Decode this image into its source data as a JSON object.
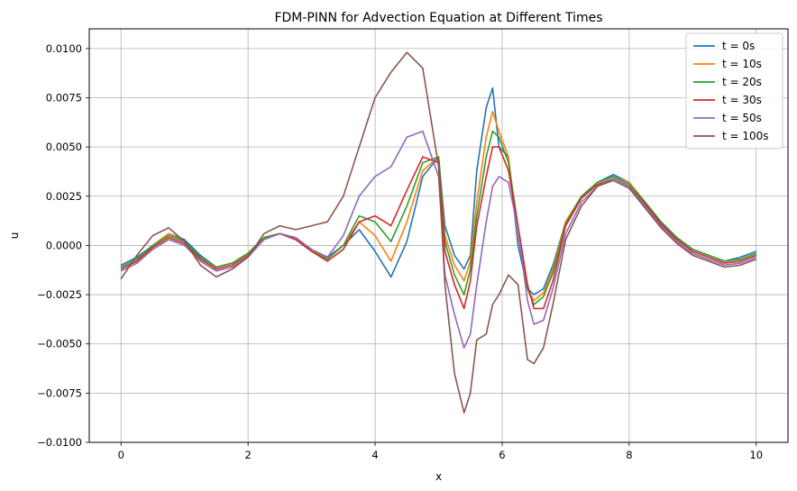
{
  "chart_data": {
    "type": "line",
    "title": "FDM-PINN for Advection Equation at Different Times",
    "xlabel": "x",
    "ylabel": "u",
    "xlim": [
      -0.5,
      10.5
    ],
    "ylim": [
      -0.01,
      0.011
    ],
    "xticks": [
      0,
      2,
      4,
      6,
      8,
      10
    ],
    "xtick_labels": [
      "0",
      "2",
      "4",
      "6",
      "8",
      "10"
    ],
    "yticks": [
      -0.01,
      -0.0075,
      -0.005,
      -0.0025,
      0.0,
      0.0025,
      0.005,
      0.0075,
      0.01
    ],
    "ytick_labels": [
      "−0.0100",
      "−0.0075",
      "−0.0050",
      "−0.0025",
      "0.0000",
      "0.0025",
      "0.0050",
      "0.0075",
      "0.0100"
    ],
    "grid": true,
    "legend_position": "top-right",
    "x": [
      0,
      0.25,
      0.5,
      0.75,
      1.0,
      1.25,
      1.5,
      1.75,
      2.0,
      2.25,
      2.5,
      2.75,
      3.0,
      3.25,
      3.5,
      3.75,
      4.0,
      4.25,
      4.5,
      4.75,
      5.0,
      5.1,
      5.25,
      5.4,
      5.5,
      5.6,
      5.75,
      5.85,
      5.95,
      6.1,
      6.25,
      6.4,
      6.5,
      6.65,
      6.8,
      7.0,
      7.25,
      7.5,
      7.75,
      8.0,
      8.25,
      8.5,
      8.75,
      9.0,
      9.25,
      9.5,
      9.75,
      10.0
    ],
    "series": [
      {
        "name": "t = 0s",
        "color": "#1f77b4",
        "values": [
          -0.001,
          -0.0006,
          0.0,
          0.0006,
          0.0003,
          -0.0005,
          -0.0011,
          -0.0009,
          -0.0004,
          0.0004,
          0.0006,
          0.0003,
          -0.0002,
          -0.0006,
          0.0,
          0.0008,
          -0.0003,
          -0.0016,
          0.0002,
          0.0035,
          0.0045,
          0.001,
          -0.0005,
          -0.0012,
          -0.0005,
          0.0038,
          0.007,
          0.008,
          0.005,
          0.0045,
          0.0,
          -0.0022,
          -0.0025,
          -0.0022,
          -0.001,
          0.0012,
          0.0025,
          0.0032,
          0.0036,
          0.0032,
          0.0022,
          0.0012,
          0.0004,
          -0.0002,
          -0.0005,
          -0.0008,
          -0.0006,
          -0.0003
        ]
      },
      {
        "name": "t = 10s",
        "color": "#ff7f0e",
        "values": [
          -0.0011,
          -0.0007,
          0.0,
          0.0006,
          0.0002,
          -0.0006,
          -0.0011,
          -0.0009,
          -0.0004,
          0.0004,
          0.0006,
          0.0003,
          -0.0002,
          -0.0007,
          0.0,
          0.0012,
          0.0005,
          -0.0008,
          0.0012,
          0.0038,
          0.0045,
          0.0005,
          -0.001,
          -0.0018,
          -0.0008,
          0.0022,
          0.0055,
          0.0068,
          0.0058,
          0.0045,
          0.0005,
          -0.0022,
          -0.0028,
          -0.0024,
          -0.0012,
          0.0012,
          0.0025,
          0.0032,
          0.0035,
          0.0032,
          0.0022,
          0.0012,
          0.0004,
          -0.0002,
          -0.0005,
          -0.0008,
          -0.0007,
          -0.0004
        ]
      },
      {
        "name": "t = 20s",
        "color": "#2ca02c",
        "values": [
          -0.0011,
          -0.0007,
          0.0,
          0.0005,
          0.0002,
          -0.0006,
          -0.0011,
          -0.0009,
          -0.0004,
          0.0004,
          0.0006,
          0.0003,
          -0.0003,
          -0.0007,
          0.0,
          0.0015,
          0.0012,
          0.0002,
          0.002,
          0.0042,
          0.0045,
          0.0002,
          -0.0015,
          -0.0025,
          -0.0012,
          0.0015,
          0.0045,
          0.0058,
          0.0055,
          0.0042,
          0.001,
          -0.0022,
          -0.003,
          -0.0026,
          -0.0014,
          0.0011,
          0.0025,
          0.0032,
          0.0035,
          0.0031,
          0.0022,
          0.0012,
          0.0004,
          -0.0002,
          -0.0005,
          -0.0008,
          -0.0007,
          -0.0004
        ]
      },
      {
        "name": "t = 30s",
        "color": "#d62728",
        "values": [
          -0.0012,
          -0.0008,
          -0.0001,
          0.0004,
          0.0001,
          -0.0007,
          -0.0012,
          -0.001,
          -0.0005,
          0.0003,
          0.0006,
          0.0003,
          -0.0003,
          -0.0008,
          -0.0002,
          0.0012,
          0.0015,
          0.001,
          0.0028,
          0.0045,
          0.0042,
          -0.0003,
          -0.002,
          -0.0032,
          -0.0018,
          0.001,
          0.0035,
          0.005,
          0.005,
          0.0038,
          0.001,
          -0.002,
          -0.0032,
          -0.0032,
          -0.0018,
          0.001,
          0.0024,
          0.0031,
          0.0034,
          0.003,
          0.0021,
          0.0011,
          0.0003,
          -0.0003,
          -0.0006,
          -0.0009,
          -0.0008,
          -0.0005
        ]
      },
      {
        "name": "t = 50s",
        "color": "#9467bd",
        "values": [
          -0.0013,
          -0.0009,
          -0.0002,
          0.0003,
          0.0,
          -0.0008,
          -0.0013,
          -0.0011,
          -0.0006,
          0.0003,
          0.0006,
          0.0004,
          -0.0002,
          -0.0006,
          0.0005,
          0.0025,
          0.0035,
          0.004,
          0.0055,
          0.0058,
          0.0035,
          -0.0015,
          -0.0035,
          -0.0052,
          -0.0045,
          -0.002,
          0.0012,
          0.003,
          0.0035,
          0.0032,
          0.0008,
          -0.0028,
          -0.004,
          -0.0038,
          -0.0022,
          0.0006,
          0.0022,
          0.003,
          0.0034,
          0.003,
          0.002,
          0.001,
          0.0002,
          -0.0004,
          -0.0007,
          -0.001,
          -0.0009,
          -0.0006
        ]
      },
      {
        "name": "t = 100s",
        "color": "#8c564b",
        "values": [
          -0.0017,
          -0.0005,
          0.0005,
          0.0009,
          0.0002,
          -0.001,
          -0.0016,
          -0.0012,
          -0.0006,
          0.0006,
          0.001,
          0.0008,
          0.001,
          0.0012,
          0.0025,
          0.005,
          0.0075,
          0.0088,
          0.0098,
          0.009,
          0.004,
          -0.002,
          -0.0065,
          -0.0085,
          -0.0075,
          -0.0048,
          -0.0045,
          -0.003,
          -0.0025,
          -0.0015,
          -0.002,
          -0.0058,
          -0.006,
          -0.0052,
          -0.003,
          0.0003,
          0.002,
          0.003,
          0.0033,
          0.0029,
          0.0019,
          0.0009,
          0.0001,
          -0.0005,
          -0.0008,
          -0.0011,
          -0.001,
          -0.0007
        ]
      }
    ]
  }
}
